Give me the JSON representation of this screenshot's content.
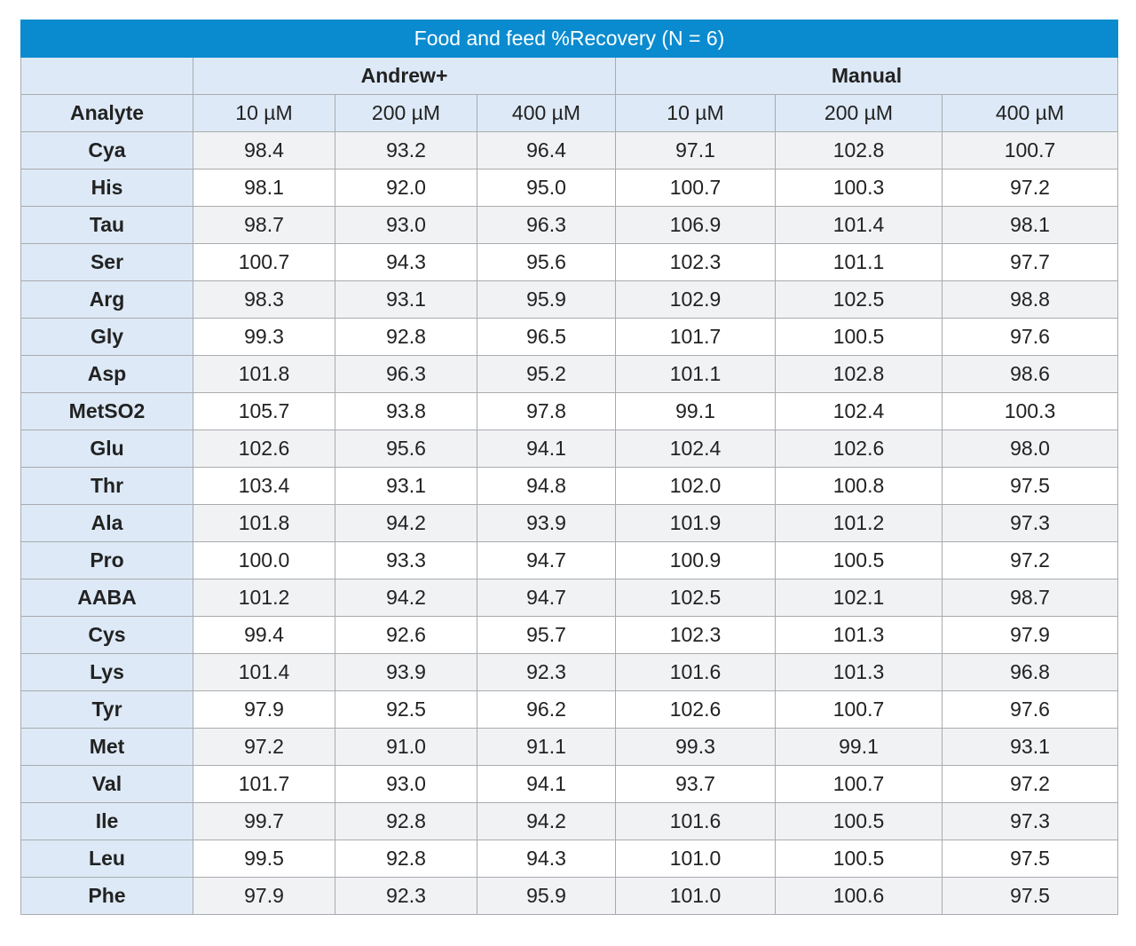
{
  "title": "Food and feed %Recovery (N = 6)",
  "groups": [
    "Andrew+",
    "Manual"
  ],
  "columns": [
    "Analyte",
    "10 µM",
    "200 µM",
    "400 µM",
    "10 µM",
    "200 µM",
    "400 µM"
  ],
  "rows": [
    [
      "Cya",
      "98.4",
      "93.2",
      "96.4",
      "97.1",
      "102.8",
      "100.7"
    ],
    [
      "His",
      "98.1",
      "92.0",
      "95.0",
      "100.7",
      "100.3",
      "97.2"
    ],
    [
      "Tau",
      "98.7",
      "93.0",
      "96.3",
      "106.9",
      "101.4",
      "98.1"
    ],
    [
      "Ser",
      "100.7",
      "94.3",
      "95.6",
      "102.3",
      "101.1",
      "97.7"
    ],
    [
      "Arg",
      "98.3",
      "93.1",
      "95.9",
      "102.9",
      "102.5",
      "98.8"
    ],
    [
      "Gly",
      "99.3",
      "92.8",
      "96.5",
      "101.7",
      "100.5",
      "97.6"
    ],
    [
      "Asp",
      "101.8",
      "96.3",
      "95.2",
      "101.1",
      "102.8",
      "98.6"
    ],
    [
      "MetSO2",
      "105.7",
      "93.8",
      "97.8",
      "99.1",
      "102.4",
      "100.3"
    ],
    [
      "Glu",
      "102.6",
      "95.6",
      "94.1",
      "102.4",
      "102.6",
      "98.0"
    ],
    [
      "Thr",
      "103.4",
      "93.1",
      "94.8",
      "102.0",
      "100.8",
      "97.5"
    ],
    [
      "Ala",
      "101.8",
      "94.2",
      "93.9",
      "101.9",
      "101.2",
      "97.3"
    ],
    [
      "Pro",
      "100.0",
      "93.3",
      "94.7",
      "100.9",
      "100.5",
      "97.2"
    ],
    [
      "AABA",
      "101.2",
      "94.2",
      "94.7",
      "102.5",
      "102.1",
      "98.7"
    ],
    [
      "Cys",
      "99.4",
      "92.6",
      "95.7",
      "102.3",
      "101.3",
      "97.9"
    ],
    [
      "Lys",
      "101.4",
      "93.9",
      "92.3",
      "101.6",
      "101.3",
      "96.8"
    ],
    [
      "Tyr",
      "97.9",
      "92.5",
      "96.2",
      "102.6",
      "100.7",
      "97.6"
    ],
    [
      "Met",
      "97.2",
      "91.0",
      "91.1",
      "99.3",
      "99.1",
      "93.1"
    ],
    [
      "Val",
      "101.7",
      "93.0",
      "94.1",
      "93.7",
      "100.7",
      "97.2"
    ],
    [
      "Ile",
      "99.7",
      "92.8",
      "94.2",
      "101.6",
      "100.5",
      "97.3"
    ],
    [
      "Leu",
      "99.5",
      "92.8",
      "94.3",
      "101.0",
      "100.5",
      "97.5"
    ],
    [
      "Phe",
      "97.9",
      "92.3",
      "95.9",
      "101.0",
      "100.6",
      "97.5"
    ]
  ],
  "colors": {
    "title_bg": "#0a8bcf",
    "header_bg": "#dde9f6",
    "stripe": "#f1f2f4"
  }
}
